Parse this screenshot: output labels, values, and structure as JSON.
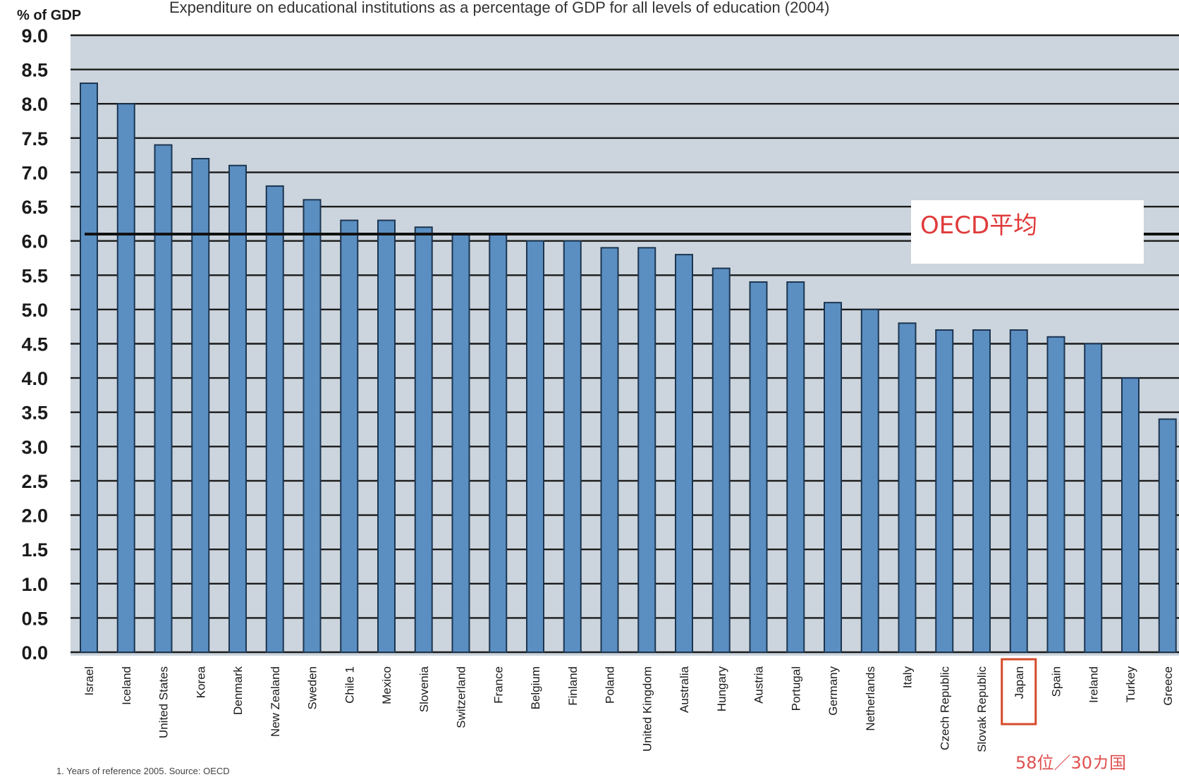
{
  "chart_data": {
    "type": "bar",
    "title": "Expenditure on educational institutions as a percentage of GDP for all levels of education (2004)",
    "ylabel": "% of GDP",
    "ylim": [
      0,
      9
    ],
    "yticks": [
      "0.0",
      "0.5",
      "1.0",
      "1.5",
      "2.0",
      "2.5",
      "3.0",
      "3.5",
      "4.0",
      "4.5",
      "5.0",
      "5.5",
      "6.0",
      "6.5",
      "7.0",
      "7.5",
      "8.0",
      "8.5",
      "9.0"
    ],
    "grid": true,
    "categories": [
      "Israel",
      "Iceland",
      "United States",
      "Korea",
      "Denmark",
      "New Zealand",
      "Sweden",
      "Chile 1",
      "Mexico",
      "Slovenia",
      "Switzerland",
      "France",
      "Belgium",
      "Finland",
      "Poland",
      "United Kingdom",
      "Australia",
      "Hungary",
      "Austria",
      "Portugal",
      "Germany",
      "Netherlands",
      "Italy",
      "Czech Republic",
      "Slovak Republic",
      "Japan",
      "Spain",
      "Ireland",
      "Turkey",
      "Greece"
    ],
    "values": [
      8.3,
      8.0,
      7.4,
      7.2,
      7.1,
      6.8,
      6.6,
      6.3,
      6.3,
      6.2,
      6.1,
      6.1,
      6.0,
      6.0,
      5.9,
      5.9,
      5.8,
      5.6,
      5.4,
      5.4,
      5.1,
      5.0,
      4.8,
      4.7,
      4.7,
      4.7,
      4.6,
      4.5,
      4.0,
      3.4
    ],
    "reference_line": {
      "label": "OECD平均",
      "value": 6.1
    },
    "highlighted_category": "Japan",
    "annotation": "58位／30カ国",
    "footnote": "1. Years of reference 2005. Source: OECD",
    "colors": {
      "bar": "#5b8fc2",
      "plot_background": "#ccd5dd",
      "annotation": "#e03a3a"
    }
  }
}
